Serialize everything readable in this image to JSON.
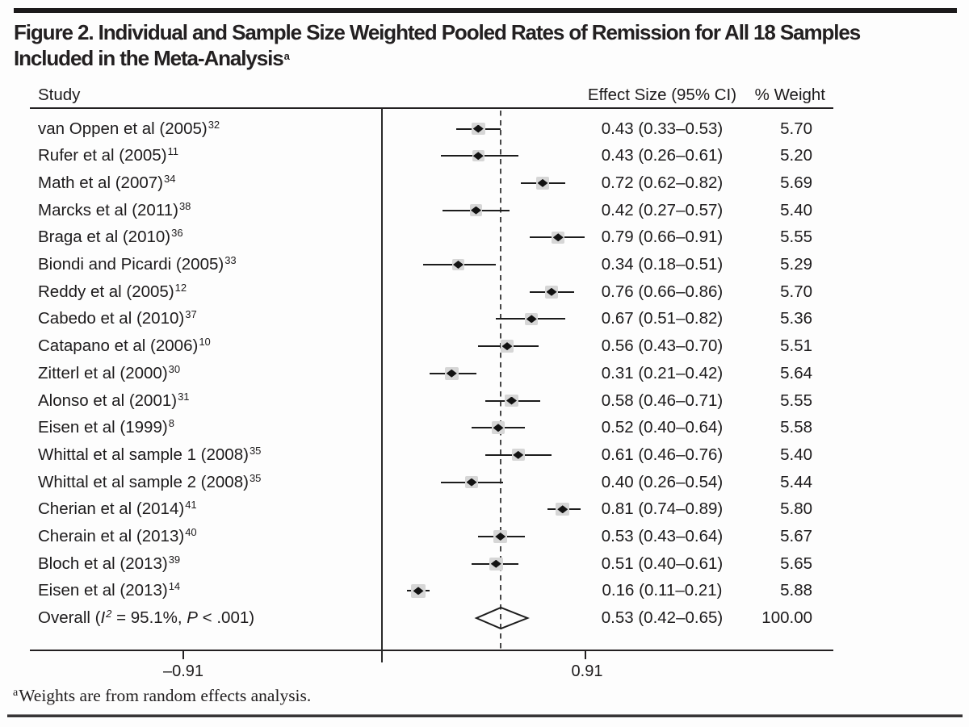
{
  "figure": {
    "title_line1": "Figure 2. Individual and Sample Size Weighted Pooled Rates of Remission for All 18 Samples",
    "title_line2": "Included in the Meta-Analysis",
    "title_sup": "a",
    "footnote_sup": "a",
    "footnote_text": "Weights are from random effects analysis."
  },
  "table": {
    "col_study": "Study",
    "col_effect": "Effect Size (95% CI)",
    "col_weight": "% Weight"
  },
  "axis": {
    "tick_left_label": "–0.91",
    "tick_right_label": "0.91",
    "tick_left_value": -0.91,
    "tick_right_value": 0.91,
    "zero_line_value": 0,
    "pooled_dashed_line_value": 0.53
  },
  "chart_data": {
    "type": "scatter",
    "variant": "forest-plot",
    "title": "Figure 2. Individual and Sample Size Weighted Pooled Rates of Remission for All 18 Samples Included in the Meta-Analysis",
    "xlabel": "",
    "x_ticks": [
      -0.91,
      0.91
    ],
    "zero_line": 0,
    "dashed_line_at": 0.53,
    "legend_position": "none",
    "columns": [
      "Study",
      "Effect Size (95% CI)",
      "% Weight"
    ],
    "studies": [
      {
        "name": "van Oppen et al (2005)",
        "ref": "32",
        "es": 0.43,
        "lo": 0.33,
        "hi": 0.53,
        "es_label": "0.43 (0.33–0.53)",
        "weight": "5.70"
      },
      {
        "name": "Rufer et al (2005)",
        "ref": "11",
        "es": 0.43,
        "lo": 0.26,
        "hi": 0.61,
        "es_label": "0.43 (0.26–0.61)",
        "weight": "5.20"
      },
      {
        "name": "Math et al (2007)",
        "ref": "34",
        "es": 0.72,
        "lo": 0.62,
        "hi": 0.82,
        "es_label": "0.72 (0.62–0.82)",
        "weight": "5.69"
      },
      {
        "name": "Marcks et al (2011)",
        "ref": "38",
        "es": 0.42,
        "lo": 0.27,
        "hi": 0.57,
        "es_label": "0.42 (0.27–0.57)",
        "weight": "5.40"
      },
      {
        "name": "Braga et al (2010)",
        "ref": "36",
        "es": 0.79,
        "lo": 0.66,
        "hi": 0.91,
        "es_label": "0.79 (0.66–0.91)",
        "weight": "5.55"
      },
      {
        "name": "Biondi and Picardi (2005)",
        "ref": "33",
        "es": 0.34,
        "lo": 0.18,
        "hi": 0.51,
        "es_label": "0.34 (0.18–0.51)",
        "weight": "5.29"
      },
      {
        "name": "Reddy et al (2005)",
        "ref": "12",
        "es": 0.76,
        "lo": 0.66,
        "hi": 0.86,
        "es_label": "0.76 (0.66–0.86)",
        "weight": "5.70"
      },
      {
        "name": "Cabedo et al (2010)",
        "ref": "37",
        "es": 0.67,
        "lo": 0.51,
        "hi": 0.82,
        "es_label": "0.67 (0.51–0.82)",
        "weight": "5.36"
      },
      {
        "name": "Catapano et al (2006)",
        "ref": "10",
        "es": 0.56,
        "lo": 0.43,
        "hi": 0.7,
        "es_label": "0.56 (0.43–0.70)",
        "weight": "5.51"
      },
      {
        "name": "Zitterl et al (2000)",
        "ref": "30",
        "es": 0.31,
        "lo": 0.21,
        "hi": 0.42,
        "es_label": "0.31 (0.21–0.42)",
        "weight": "5.64"
      },
      {
        "name": "Alonso et al (2001)",
        "ref": "31",
        "es": 0.58,
        "lo": 0.46,
        "hi": 0.71,
        "es_label": "0.58 (0.46–0.71)",
        "weight": "5.55"
      },
      {
        "name": "Eisen et al (1999)",
        "ref": "8",
        "es": 0.52,
        "lo": 0.4,
        "hi": 0.64,
        "es_label": "0.52 (0.40–0.64)",
        "weight": "5.58"
      },
      {
        "name": "Whittal et al sample 1 (2008)",
        "ref": "35",
        "es": 0.61,
        "lo": 0.46,
        "hi": 0.76,
        "es_label": "0.61 (0.46–0.76)",
        "weight": "5.40"
      },
      {
        "name": "Whittal et al sample 2 (2008)",
        "ref": "35",
        "es": 0.4,
        "lo": 0.26,
        "hi": 0.54,
        "es_label": "0.40 (0.26–0.54)",
        "weight": "5.44"
      },
      {
        "name": "Cherian et al (2014)",
        "ref": "41",
        "es": 0.81,
        "lo": 0.74,
        "hi": 0.89,
        "es_label": "0.81 (0.74–0.89)",
        "weight": "5.80"
      },
      {
        "name": "Cherain et al (2013)",
        "ref": "40",
        "es": 0.53,
        "lo": 0.43,
        "hi": 0.64,
        "es_label": "0.53 (0.43–0.64)",
        "weight": "5.67"
      },
      {
        "name": "Bloch et al (2013)",
        "ref": "39",
        "es": 0.51,
        "lo": 0.4,
        "hi": 0.61,
        "es_label": "0.51 (0.40–0.61)",
        "weight": "5.65"
      },
      {
        "name": "Eisen et al (2013)",
        "ref": "14",
        "es": 0.16,
        "lo": 0.11,
        "hi": 0.21,
        "es_label": "0.16 (0.11–0.21)",
        "weight": "5.88"
      }
    ],
    "overall": {
      "label_parts": [
        {
          "t": "Overall (",
          "it": false,
          "sup": false
        },
        {
          "t": "I",
          "it": true,
          "sup": false
        },
        {
          "t": "2",
          "it": true,
          "sup": true
        },
        {
          "t": " = 95.1%, ",
          "it": false,
          "sup": false
        },
        {
          "t": "P",
          "it": true,
          "sup": false
        },
        {
          "t": " < .001)",
          "it": false,
          "sup": false
        }
      ],
      "es": 0.53,
      "lo": 0.42,
      "hi": 0.65,
      "es_label": "0.53 (0.42–0.65)",
      "weight": "100.00"
    }
  }
}
